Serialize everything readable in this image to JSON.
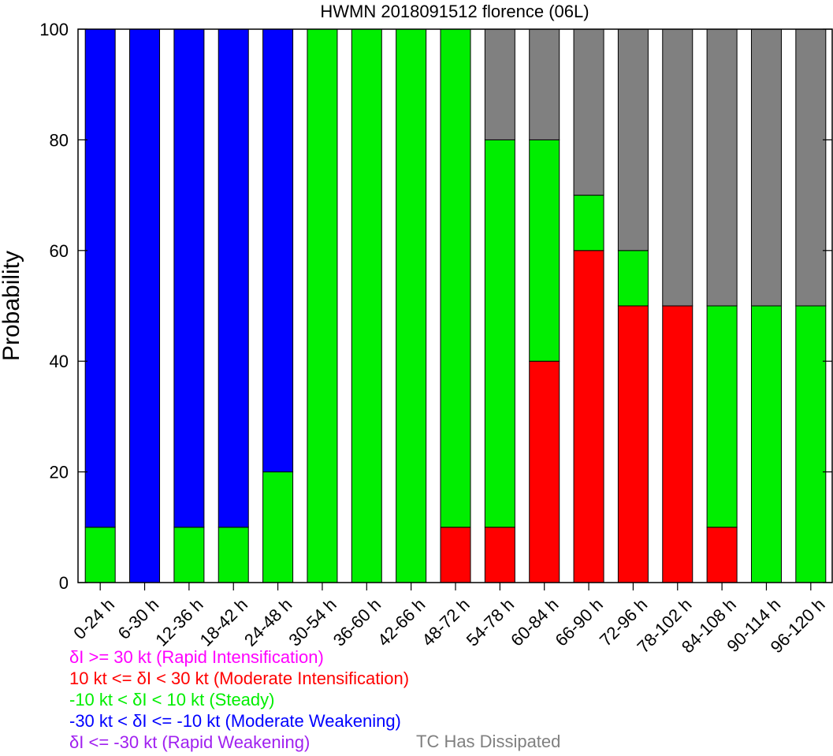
{
  "chart_data": {
    "type": "bar",
    "stacked": true,
    "title": "HWMN 2018091512 florence (06L)",
    "ylabel": "Probability",
    "xlabel": "",
    "ylim": [
      0,
      100
    ],
    "yticks": [
      0,
      20,
      40,
      60,
      80,
      100
    ],
    "categories": [
      "0-24 h",
      "6-30 h",
      "12-36 h",
      "18-42 h",
      "24-48 h",
      "30-54 h",
      "36-60 h",
      "42-66 h",
      "48-72 h",
      "54-78 h",
      "60-84 h",
      "66-90 h",
      "72-96 h",
      "78-102 h",
      "84-108 h",
      "90-114 h",
      "96-120 h"
    ],
    "series": [
      {
        "key": "ri",
        "color": "#ff00ff",
        "values": [
          0,
          0,
          0,
          0,
          0,
          0,
          0,
          0,
          0,
          0,
          0,
          0,
          0,
          0,
          0,
          0,
          0
        ]
      },
      {
        "key": "mi",
        "color": "#ff0000",
        "values": [
          0,
          0,
          0,
          0,
          0,
          0,
          0,
          0,
          10,
          10,
          40,
          60,
          50,
          50,
          10,
          0,
          0
        ]
      },
      {
        "key": "steady",
        "color": "#00ee00",
        "values": [
          10,
          0,
          10,
          10,
          20,
          100,
          100,
          100,
          90,
          70,
          40,
          10,
          10,
          0,
          40,
          50,
          50
        ]
      },
      {
        "key": "mw",
        "color": "#0000ff",
        "values": [
          90,
          100,
          90,
          90,
          80,
          0,
          0,
          0,
          0,
          0,
          0,
          0,
          0,
          0,
          0,
          0,
          0
        ]
      },
      {
        "key": "rw",
        "color": "#a020f0",
        "values": [
          0,
          0,
          0,
          0,
          0,
          0,
          0,
          0,
          0,
          0,
          0,
          0,
          0,
          0,
          0,
          0,
          0
        ]
      },
      {
        "key": "dissipated",
        "color": "#808080",
        "values": [
          0,
          0,
          0,
          0,
          0,
          0,
          0,
          0,
          0,
          20,
          20,
          30,
          40,
          50,
          50,
          50,
          50
        ]
      }
    ],
    "grid": false,
    "legend_position": "bottom-left"
  },
  "legend": {
    "ri": {
      "text": "δI >= 30 kt (Rapid Intensification)",
      "color": "#ff00ff"
    },
    "mi": {
      "text": "10 kt <= δI < 30 kt (Moderate Intensification)",
      "color": "#ff0000"
    },
    "steady": {
      "text": "-10 kt < δI < 10 kt (Steady)",
      "color": "#00ee00"
    },
    "mw": {
      "text": "-30 kt < δI <= -10 kt (Moderate Weakening)",
      "color": "#0000ff"
    },
    "rw": {
      "text": "δI <= -30 kt (Rapid Weakening)",
      "color": "#a020f0"
    },
    "dissipated": {
      "text": "TC Has Dissipated",
      "color": "#808080"
    }
  }
}
